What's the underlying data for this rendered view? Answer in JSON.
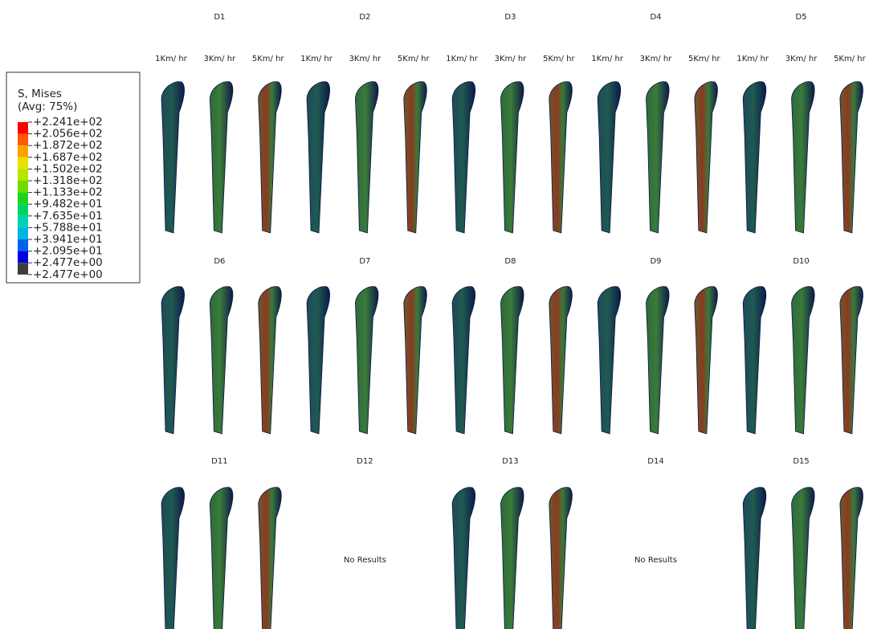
{
  "legend": {
    "title": "S, Mises",
    "subtitle": "(Avg: 75%)",
    "labels": [
      "+2.241e+02",
      "+2.056e+02",
      "+1.872e+02",
      "+1.687e+02",
      "+1.502e+02",
      "+1.318e+02",
      "+1.133e+02",
      "+9.482e+01",
      "+7.635e+01",
      "+5.788e+01",
      "+3.941e+01",
      "+2.095e+01",
      "+2.477e+00",
      "+2.477e+00"
    ],
    "colors": [
      "#ff0000",
      "#ff5a00",
      "#ffa000",
      "#e8e000",
      "#b4e600",
      "#6edc00",
      "#1ed21e",
      "#00d264",
      "#00d2b4",
      "#00b4e6",
      "#0064e6",
      "#0000e6",
      "#3c3c3c"
    ]
  },
  "speeds": [
    "1Km/ hr",
    "3Km/ hr",
    "5Km/ hr"
  ],
  "rows": [
    [
      {
        "label": "D1"
      },
      {
        "label": "D2"
      },
      {
        "label": "D3"
      },
      {
        "label": "D4"
      },
      {
        "label": "D5"
      }
    ],
    [
      {
        "label": "D6"
      },
      {
        "label": "D7"
      },
      {
        "label": "D8"
      },
      {
        "label": "D9"
      },
      {
        "label": "D10"
      }
    ],
    [
      {
        "label": "D11"
      },
      {
        "label": "D12",
        "note": "No Results"
      },
      {
        "label": "D13"
      },
      {
        "label": "D14",
        "note": "No Results"
      },
      {
        "label": "D15"
      }
    ]
  ]
}
